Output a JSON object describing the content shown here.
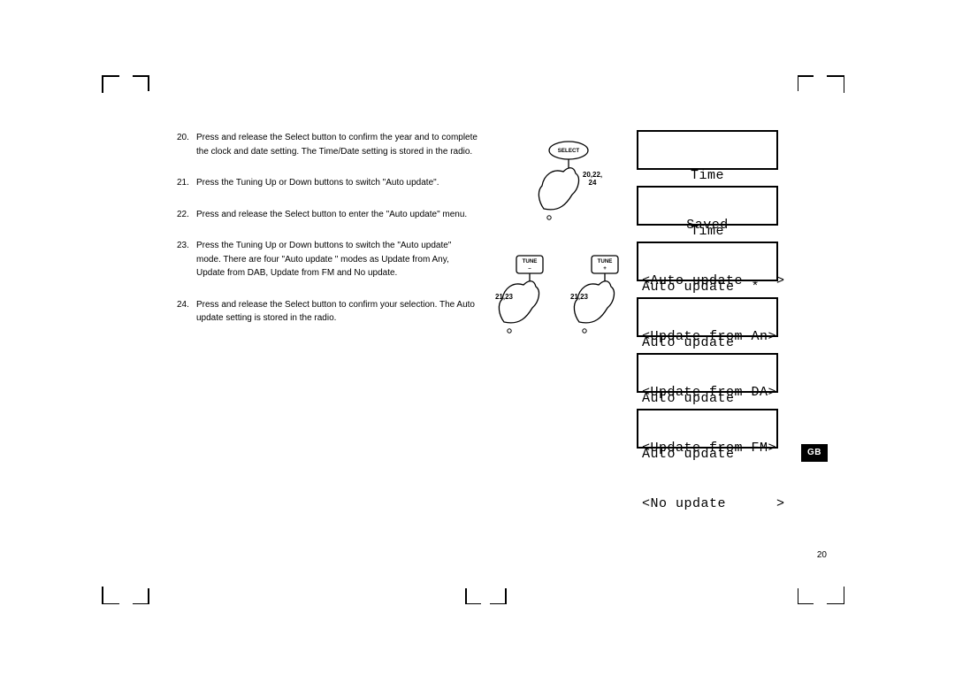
{
  "instructions": [
    {
      "num": "20.",
      "text": "Press and release the Select button to confirm the year and to complete the clock and date setting. The Time/Date setting is stored in the radio."
    },
    {
      "num": "21.",
      "text": "Press the Tuning Up or Down buttons to switch \"Auto update\"."
    },
    {
      "num": "22.",
      "text": "Press and release the Select button to enter the \"Auto update\" menu."
    },
    {
      "num": "23.",
      "text": "Press the Tuning Up or Down buttons to switch the \"Auto update\" mode. There are four \"Auto update \" modes as Update from Any, Update from DAB, Update from FM and No update."
    },
    {
      "num": "24.",
      "text": "Press and release the Select button to confirm your selection. The Auto update setting is stored in the radio."
    }
  ],
  "lcd_screens": [
    {
      "line1": "Time",
      "line2": "Saved",
      "align": "center"
    },
    {
      "line1": "Time",
      "line2": "<Auto update    >",
      "align": "center"
    },
    {
      "line1": "Auto update  *",
      "line2": "<Update from An>",
      "align": "left"
    },
    {
      "line1": "Auto update",
      "line2": "<Update from DA>",
      "align": "left"
    },
    {
      "line1": "Auto update",
      "line2": "<Update from FM>",
      "align": "left"
    },
    {
      "line1": "Auto update",
      "line2": "<No update      >",
      "align": "left"
    }
  ],
  "figures": {
    "select": {
      "button_label": "SELECT",
      "step_label": "20,22,\n24"
    },
    "tune_down": {
      "button_label": "TUNE\n–",
      "step_label": "21,23"
    },
    "tune_up": {
      "button_label": "TUNE\n+",
      "step_label": "21,23"
    }
  },
  "badge": "GB",
  "page_number": "20",
  "colors": {
    "ink": "#000000",
    "paper": "#ffffff"
  }
}
